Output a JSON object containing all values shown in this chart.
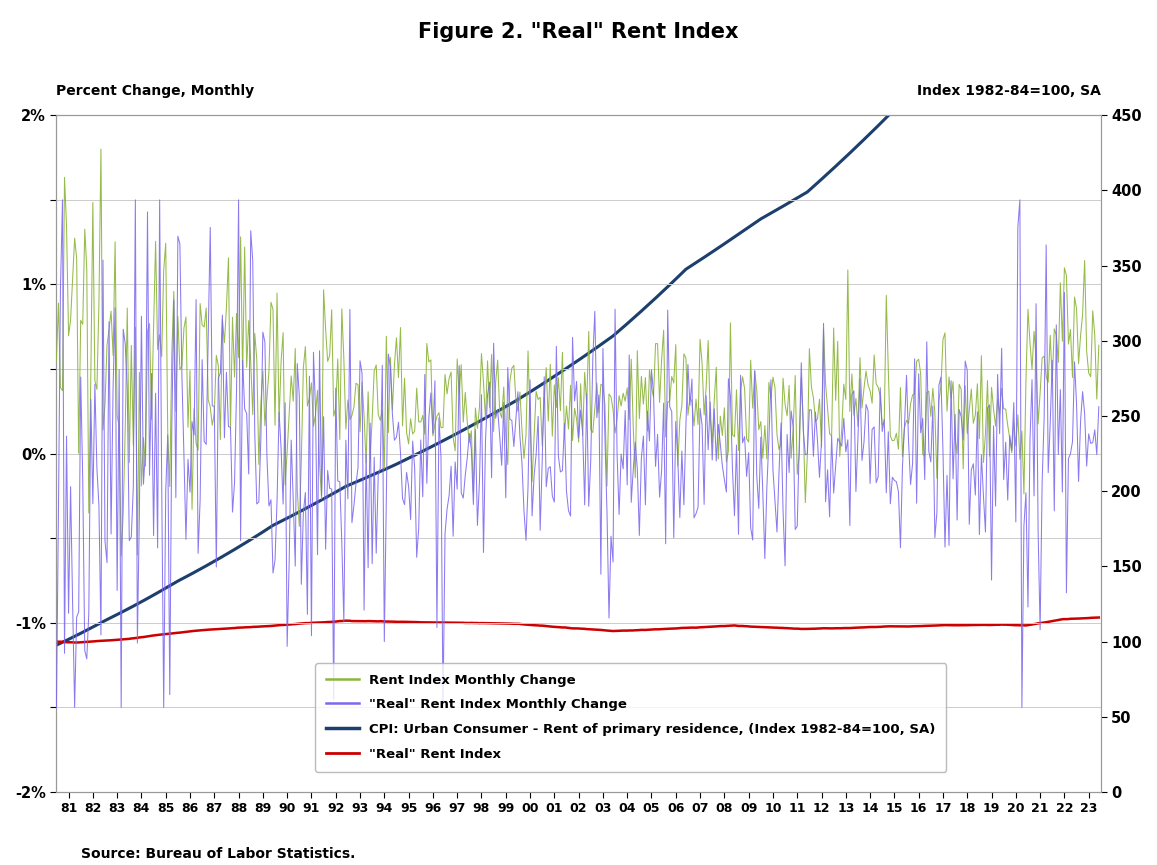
{
  "title": "Figure 2. \"Real\" Rent Index",
  "ylabel_left": "Percent Change, Monthly",
  "ylabel_right": "Index 1982-84=100, SA",
  "source": "Source: Bureau of Labor Statistics.",
  "ylim_left": [
    -0.02,
    0.02
  ],
  "ylim_right": [
    0,
    450
  ],
  "yticks_left": [
    -0.02,
    -0.015,
    -0.01,
    -0.005,
    0.0,
    0.005,
    0.01,
    0.015,
    0.02
  ],
  "ytick_labels_left": [
    "-2%",
    "",
    "-1%",
    "",
    "0%",
    "",
    "1%",
    "",
    "2%"
  ],
  "yticks_right": [
    0,
    50,
    100,
    150,
    200,
    250,
    300,
    350,
    400,
    450
  ],
  "colors": {
    "rent_monthly": "#8DB53C",
    "real_rent_monthly": "#7B68EE",
    "cpi_rent": "#1C3F6E",
    "real_rent_index": "#CC0000"
  },
  "legend_labels": [
    "Rent Index Monthly Change",
    "\"Real\" Rent Index Monthly Change",
    "CPI: Urban Consumer - Rent of primary residence, (Index 1982-84=100, SA)",
    "\"Real\" Rent Index"
  ],
  "x_start_year": 1981,
  "x_end_year": 2023,
  "background_color": "#FFFFFF"
}
